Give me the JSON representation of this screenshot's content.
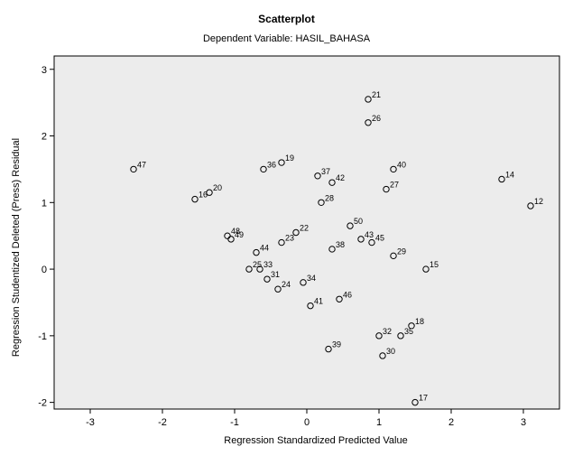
{
  "chart_data": {
    "type": "scatter",
    "title": "Scatterplot",
    "subtitle": "Dependent Variable: HASIL_BAHASA",
    "xlabel": "Regression Standardized Predicted Value",
    "ylabel": "Regression Studentized Deleted (Press) Residual",
    "xlim": [
      -3.5,
      3.5
    ],
    "ylim": [
      -2.1,
      3.2
    ],
    "x_ticks": [
      -3,
      -2,
      -1,
      0,
      1,
      2,
      3
    ],
    "x_tick_labels": [
      "-3",
      "-2",
      "-1",
      "0",
      "1",
      "2",
      "3"
    ],
    "y_ticks": [
      -2,
      -1,
      0,
      1,
      2,
      3
    ],
    "y_tick_labels": [
      "-2",
      "-1",
      "0",
      "1",
      "2",
      "3"
    ],
    "plot_background": "#ececec",
    "grid": false,
    "points": [
      {
        "x": -2.4,
        "y": 1.5,
        "label": "47"
      },
      {
        "x": -1.55,
        "y": 1.05,
        "label": "16"
      },
      {
        "x": -1.35,
        "y": 1.15,
        "label": "20"
      },
      {
        "x": -1.1,
        "y": 0.5,
        "label": "48"
      },
      {
        "x": -1.05,
        "y": 0.45,
        "label": "49"
      },
      {
        "x": -0.7,
        "y": 0.25,
        "label": "44"
      },
      {
        "x": -0.8,
        "y": 0.0,
        "label": "25"
      },
      {
        "x": -0.65,
        "y": 0.0,
        "label": "33"
      },
      {
        "x": -0.55,
        "y": -0.15,
        "label": "31"
      },
      {
        "x": -0.4,
        "y": -0.3,
        "label": "24"
      },
      {
        "x": -0.35,
        "y": 0.4,
        "label": "23"
      },
      {
        "x": -0.15,
        "y": 0.55,
        "label": "22"
      },
      {
        "x": -0.05,
        "y": -0.2,
        "label": "34"
      },
      {
        "x": 0.05,
        "y": -0.55,
        "label": "41"
      },
      {
        "x": -0.6,
        "y": 1.5,
        "label": "36"
      },
      {
        "x": -0.35,
        "y": 1.6,
        "label": "19"
      },
      {
        "x": 0.15,
        "y": 1.4,
        "label": "37"
      },
      {
        "x": 0.35,
        "y": 1.3,
        "label": "42"
      },
      {
        "x": 0.2,
        "y": 1.0,
        "label": "28"
      },
      {
        "x": 0.35,
        "y": 0.3,
        "label": "38"
      },
      {
        "x": 0.6,
        "y": 0.65,
        "label": "50"
      },
      {
        "x": 0.45,
        "y": -0.45,
        "label": "46"
      },
      {
        "x": 0.3,
        "y": -1.2,
        "label": "39"
      },
      {
        "x": 0.75,
        "y": 0.45,
        "label": "43"
      },
      {
        "x": 0.9,
        "y": 0.4,
        "label": "45"
      },
      {
        "x": 0.85,
        "y": 2.55,
        "label": "21"
      },
      {
        "x": 0.85,
        "y": 2.2,
        "label": "26"
      },
      {
        "x": 1.1,
        "y": 1.2,
        "label": "27"
      },
      {
        "x": 1.2,
        "y": 1.5,
        "label": "40"
      },
      {
        "x": 1.2,
        "y": 0.2,
        "label": "29"
      },
      {
        "x": 1.0,
        "y": -1.0,
        "label": "32"
      },
      {
        "x": 1.05,
        "y": -1.3,
        "label": "30"
      },
      {
        "x": 1.3,
        "y": -1.0,
        "label": "35"
      },
      {
        "x": 1.45,
        "y": -0.85,
        "label": "18"
      },
      {
        "x": 1.5,
        "y": -2.0,
        "label": "17"
      },
      {
        "x": 1.65,
        "y": 0.0,
        "label": "15"
      },
      {
        "x": 2.7,
        "y": 1.35,
        "label": "14"
      },
      {
        "x": 3.1,
        "y": 0.95,
        "label": "12"
      }
    ]
  }
}
